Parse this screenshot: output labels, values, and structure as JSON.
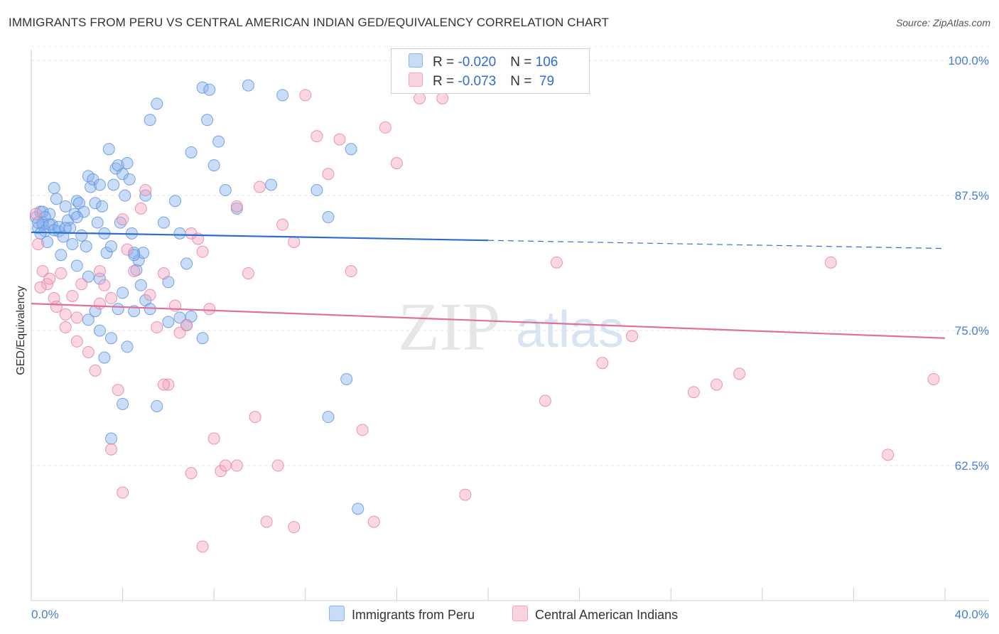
{
  "title": "IMMIGRANTS FROM PERU VS CENTRAL AMERICAN INDIAN GED/EQUIVALENCY CORRELATION CHART",
  "source": "Source: ZipAtlas.com",
  "watermark": {
    "zip": "ZIP",
    "atlas": "atlas"
  },
  "legend_box": {
    "rows": [
      {
        "r_label": "R = ",
        "r_value": "-0.020",
        "n_label": "N = ",
        "n_value": "106",
        "color": "#8ab4f0"
      },
      {
        "r_label": "R = ",
        "r_value": "-0.073",
        "n_label": "N = ",
        "n_value": " 79",
        "color": "#f4a6c0"
      }
    ]
  },
  "chart_data": {
    "type": "scatter",
    "title": "IMMIGRANTS FROM PERU VS CENTRAL AMERICAN INDIAN GED/EQUIVALENCY CORRELATION CHART",
    "xlabel": "",
    "ylabel": "GED/Equivalency",
    "xlim": [
      0,
      40
    ],
    "ylim": [
      50,
      101
    ],
    "x_tick_labels": [
      "0.0%",
      "40.0%"
    ],
    "y_ticks": [
      62.5,
      75.0,
      87.5,
      100.0
    ],
    "y_tick_labels": [
      "62.5%",
      "75.0%",
      "87.5%",
      "100.0%"
    ],
    "grid": true,
    "legend": "bottom",
    "series": [
      {
        "name": "Immigrants from Peru",
        "color": "#8ab4f0",
        "stroke": "#5b8fd9",
        "trend": {
          "x": [
            0,
            40
          ],
          "y": [
            84.1,
            82.6
          ],
          "solid_until": 20
        },
        "points": [
          [
            0.2,
            85.5
          ],
          [
            0.3,
            84.5
          ],
          [
            0.4,
            86.0
          ],
          [
            0.5,
            85.0
          ],
          [
            0.6,
            84.2
          ],
          [
            0.7,
            83.2
          ],
          [
            0.8,
            85.8
          ],
          [
            0.9,
            84.8
          ],
          [
            1.0,
            88.2
          ],
          [
            1.1,
            87.2
          ],
          [
            1.2,
            84.2
          ],
          [
            1.3,
            82.0
          ],
          [
            1.4,
            83.7
          ],
          [
            1.5,
            86.5
          ],
          [
            1.6,
            85.2
          ],
          [
            1.7,
            84.5
          ],
          [
            1.8,
            83.0
          ],
          [
            1.9,
            85.8
          ],
          [
            2.0,
            87.0
          ],
          [
            2.1,
            86.8
          ],
          [
            2.2,
            83.8
          ],
          [
            2.3,
            86.0
          ],
          [
            2.4,
            82.8
          ],
          [
            2.5,
            89.3
          ],
          [
            2.6,
            88.3
          ],
          [
            2.7,
            89.0
          ],
          [
            2.8,
            86.8
          ],
          [
            2.9,
            85.0
          ],
          [
            3.0,
            88.5
          ],
          [
            3.1,
            86.5
          ],
          [
            3.2,
            84.0
          ],
          [
            3.3,
            82.2
          ],
          [
            3.4,
            91.8
          ],
          [
            3.5,
            82.8
          ],
          [
            3.6,
            88.5
          ],
          [
            3.7,
            90.0
          ],
          [
            3.8,
            90.3
          ],
          [
            3.9,
            85.0
          ],
          [
            4.0,
            89.5
          ],
          [
            4.1,
            87.5
          ],
          [
            4.2,
            90.5
          ],
          [
            4.3,
            89.0
          ],
          [
            4.4,
            84.0
          ],
          [
            4.5,
            82.2
          ],
          [
            4.6,
            80.6
          ],
          [
            4.7,
            81.5
          ],
          [
            4.8,
            79.2
          ],
          [
            4.9,
            82.2
          ],
          [
            5.0,
            87.5
          ],
          [
            5.2,
            94.5
          ],
          [
            5.5,
            96.0
          ],
          [
            5.8,
            85.0
          ],
          [
            6.0,
            79.5
          ],
          [
            6.3,
            87.0
          ],
          [
            6.5,
            84.0
          ],
          [
            6.8,
            81.2
          ],
          [
            7.0,
            91.5
          ],
          [
            7.5,
            97.5
          ],
          [
            7.7,
            94.5
          ],
          [
            7.8,
            97.3
          ],
          [
            8.0,
            90.3
          ],
          [
            8.2,
            92.5
          ],
          [
            8.5,
            88.0
          ],
          [
            9.0,
            86.3
          ],
          [
            9.5,
            97.7
          ],
          [
            10.5,
            88.5
          ],
          [
            11.0,
            96.8
          ],
          [
            12.5,
            88.0
          ],
          [
            13.0,
            85.5
          ],
          [
            14.0,
            91.8
          ],
          [
            2.0,
            81.0
          ],
          [
            2.5,
            80.0
          ],
          [
            2.8,
            76.8
          ],
          [
            3.0,
            75.0
          ],
          [
            3.2,
            72.5
          ],
          [
            3.5,
            74.3
          ],
          [
            3.8,
            77.0
          ],
          [
            4.0,
            78.5
          ],
          [
            4.2,
            73.5
          ],
          [
            4.5,
            76.8
          ],
          [
            5.0,
            77.8
          ],
          [
            5.5,
            68.0
          ],
          [
            6.0,
            75.8
          ],
          [
            6.5,
            76.2
          ],
          [
            7.0,
            76.3
          ],
          [
            4.0,
            68.2
          ],
          [
            3.5,
            65.0
          ],
          [
            0.5,
            86.0
          ],
          [
            0.6,
            85.5
          ],
          [
            0.5,
            84.8
          ],
          [
            0.8,
            84.8
          ],
          [
            1.0,
            84.3
          ],
          [
            0.3,
            85.0
          ],
          [
            0.4,
            84.0
          ],
          [
            1.2,
            84.6
          ],
          [
            2.5,
            76.0
          ],
          [
            3.0,
            79.8
          ],
          [
            4.5,
            82.0
          ],
          [
            13.0,
            67.0
          ],
          [
            13.8,
            70.5
          ],
          [
            14.3,
            58.5
          ],
          [
            7.5,
            74.3
          ],
          [
            6.8,
            75.5
          ],
          [
            5.2,
            77.0
          ],
          [
            1.5,
            84.5
          ],
          [
            2.0,
            85.5
          ]
        ]
      },
      {
        "name": "Central American Indians",
        "color": "#f4a6c0",
        "stroke": "#e37fa0",
        "trend": {
          "x": [
            0,
            40
          ],
          "y": [
            77.5,
            74.3
          ]
        },
        "points": [
          [
            0.2,
            85.8
          ],
          [
            0.3,
            83.0
          ],
          [
            0.5,
            80.5
          ],
          [
            0.7,
            79.3
          ],
          [
            0.8,
            79.8
          ],
          [
            1.0,
            78.0
          ],
          [
            1.1,
            77.2
          ],
          [
            1.3,
            80.3
          ],
          [
            1.5,
            75.3
          ],
          [
            1.8,
            78.2
          ],
          [
            2.0,
            76.2
          ],
          [
            2.2,
            79.3
          ],
          [
            2.5,
            73.0
          ],
          [
            2.8,
            71.3
          ],
          [
            3.0,
            80.5
          ],
          [
            3.2,
            79.2
          ],
          [
            3.5,
            78.0
          ],
          [
            3.8,
            69.5
          ],
          [
            4.0,
            85.3
          ],
          [
            4.2,
            82.5
          ],
          [
            4.5,
            80.5
          ],
          [
            4.8,
            86.3
          ],
          [
            5.0,
            88.0
          ],
          [
            5.2,
            78.3
          ],
          [
            5.5,
            75.3
          ],
          [
            5.8,
            80.3
          ],
          [
            6.0,
            70.0
          ],
          [
            6.3,
            77.3
          ],
          [
            6.5,
            74.8
          ],
          [
            6.8,
            75.5
          ],
          [
            7.0,
            84.0
          ],
          [
            7.3,
            83.5
          ],
          [
            7.5,
            82.3
          ],
          [
            7.8,
            77.0
          ],
          [
            8.0,
            65.0
          ],
          [
            8.3,
            62.0
          ],
          [
            8.5,
            62.5
          ],
          [
            9.0,
            86.5
          ],
          [
            9.5,
            80.3
          ],
          [
            9.8,
            67.0
          ],
          [
            10.0,
            88.3
          ],
          [
            10.3,
            57.3
          ],
          [
            10.8,
            62.5
          ],
          [
            11.0,
            84.8
          ],
          [
            11.5,
            83.2
          ],
          [
            12.0,
            96.8
          ],
          [
            12.5,
            93.0
          ],
          [
            13.0,
            89.5
          ],
          [
            13.5,
            92.7
          ],
          [
            14.0,
            80.5
          ],
          [
            14.5,
            65.8
          ],
          [
            15.0,
            57.3
          ],
          [
            15.5,
            93.8
          ],
          [
            16.0,
            90.5
          ],
          [
            17.0,
            96.5
          ],
          [
            17.5,
            99.0
          ],
          [
            18.0,
            96.5
          ],
          [
            19.0,
            59.8
          ],
          [
            22.5,
            68.5
          ],
          [
            23.0,
            81.3
          ],
          [
            25.0,
            72.0
          ],
          [
            26.3,
            74.5
          ],
          [
            29.0,
            69.3
          ],
          [
            30.0,
            70.0
          ],
          [
            31.0,
            71.0
          ],
          [
            35.0,
            81.3
          ],
          [
            37.5,
            63.5
          ],
          [
            39.5,
            70.5
          ],
          [
            1.5,
            76.5
          ],
          [
            2.0,
            74.0
          ],
          [
            3.0,
            77.5
          ],
          [
            4.0,
            60.0
          ],
          [
            5.8,
            70.0
          ],
          [
            7.0,
            61.8
          ],
          [
            7.5,
            55.0
          ],
          [
            9.0,
            62.5
          ],
          [
            11.5,
            56.8
          ],
          [
            0.4,
            79.0
          ],
          [
            3.5,
            64.0
          ]
        ]
      }
    ]
  },
  "bottom_legend": [
    {
      "label": "Immigrants from Peru",
      "color": "#8ab4f0"
    },
    {
      "label": "Central American Indians",
      "color": "#f4a6c0"
    }
  ]
}
